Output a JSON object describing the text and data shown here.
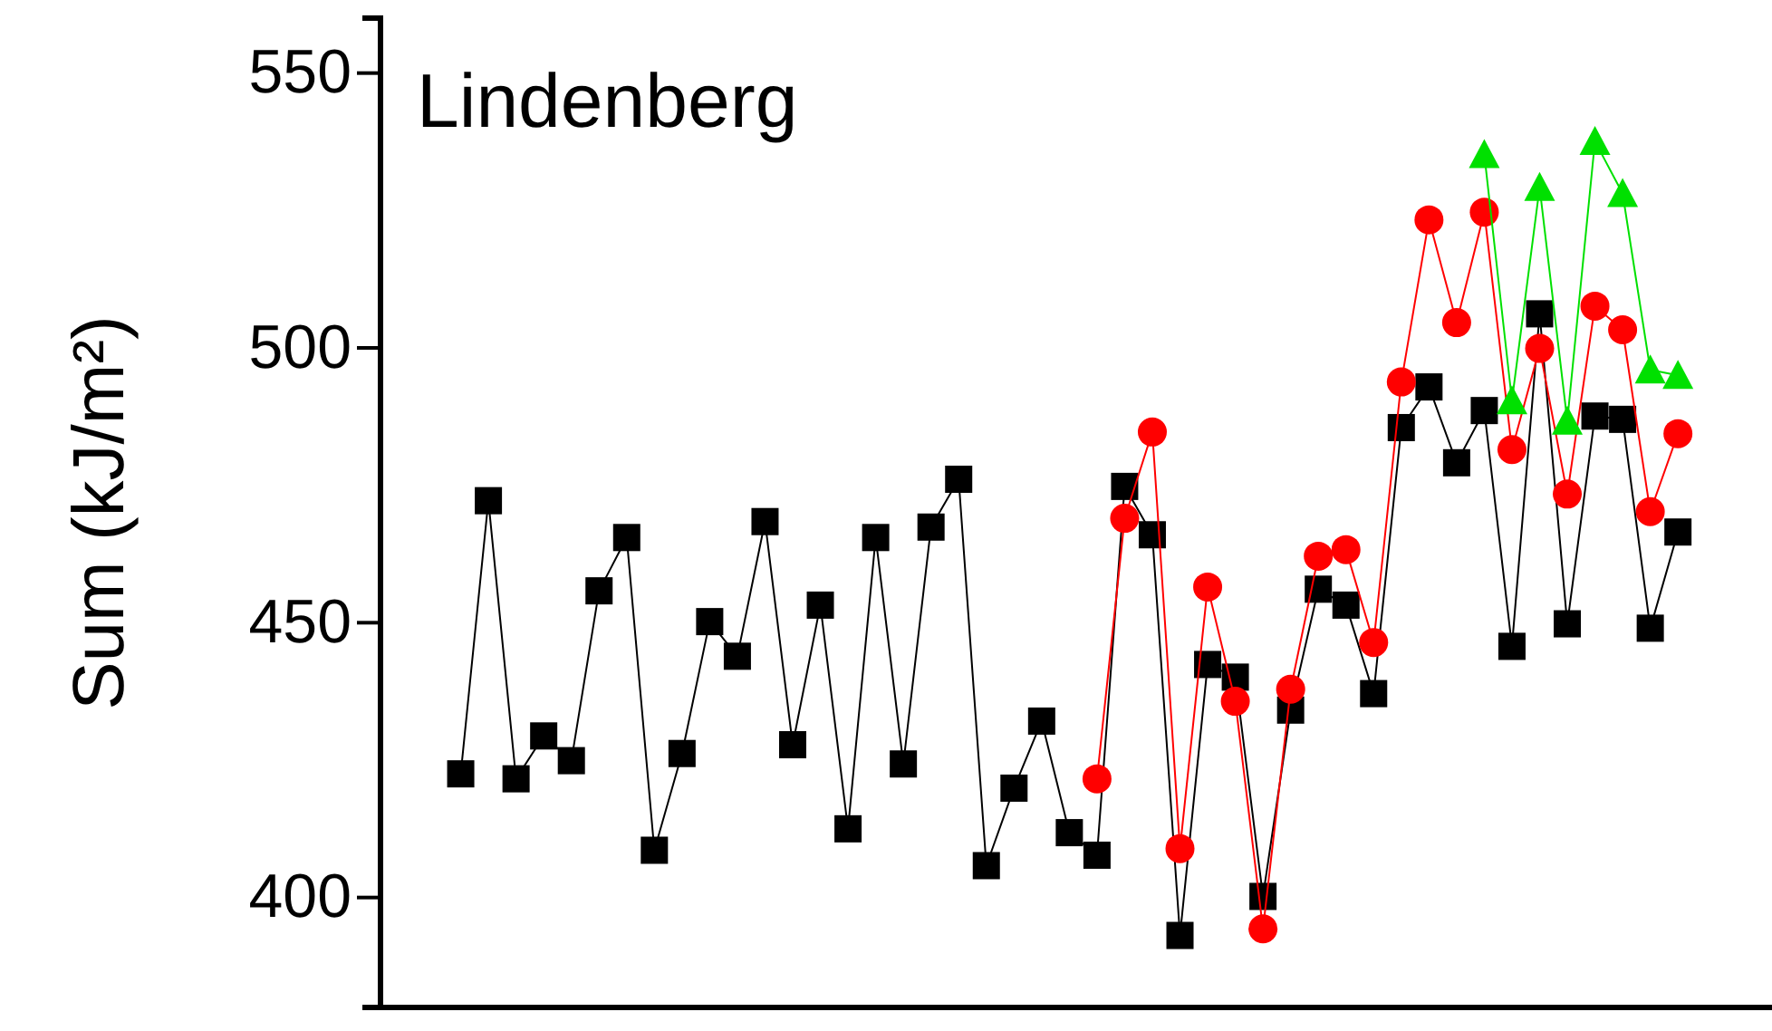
{
  "chart_data": {
    "type": "line",
    "title": "Lindenberg",
    "ylabel": "Sum (kJ/m²)",
    "categories": [
      null,
      null,
      null,
      null,
      null,
      null,
      null,
      null,
      null,
      null,
      null,
      null,
      null,
      null,
      null,
      null,
      null,
      null,
      null,
      null,
      null,
      null,
      null,
      null,
      null,
      null,
      null,
      null,
      null,
      null,
      null,
      null,
      null,
      null,
      null,
      null,
      null,
      null,
      null,
      null,
      null,
      null,
      null,
      null,
      null
    ],
    "series": [
      {
        "color": "#000000",
        "marker": "square",
        "values": [
          422.5,
          472.2,
          421.6,
          429.4,
          424.9,
          455.8,
          465.5,
          408.6,
          426.2,
          450.2,
          443.9,
          468.4,
          427.8,
          453.2,
          412.5,
          465.5,
          424.3,
          467.4,
          476.1,
          405.8,
          419.9,
          432.1,
          411.8,
          407.7,
          474.8,
          466.0,
          393.1,
          442.4,
          440.1,
          400.2,
          434.1,
          456.1,
          453.2,
          437.1,
          485.5,
          492.9,
          479.1,
          488.6,
          445.7,
          506.2,
          449.8,
          487.6,
          487.0,
          449.0,
          466.5
        ]
      },
      {
        "color": "#ff0000",
        "marker": "circle",
        "values": [
          null,
          null,
          null,
          null,
          null,
          null,
          null,
          null,
          null,
          null,
          null,
          null,
          null,
          null,
          null,
          null,
          null,
          null,
          null,
          null,
          null,
          null,
          null,
          421.6,
          469.0,
          484.7,
          408.9,
          456.5,
          435.7,
          394.3,
          437.9,
          462.1,
          463.3,
          446.4,
          493.8,
          523.3,
          504.6,
          524.7,
          481.5,
          499.9,
          473.4,
          507.6,
          503.3,
          470.2,
          484.4
        ]
      },
      {
        "color": "#00e000",
        "marker": "triangle",
        "values": [
          null,
          null,
          null,
          null,
          null,
          null,
          null,
          null,
          null,
          null,
          null,
          null,
          null,
          null,
          null,
          null,
          null,
          null,
          null,
          null,
          null,
          null,
          null,
          null,
          null,
          null,
          null,
          null,
          null,
          null,
          null,
          null,
          null,
          null,
          null,
          null,
          null,
          535.2,
          490.4,
          529.2,
          486.7,
          537.6,
          528.1,
          496.0,
          495.0
        ]
      }
    ],
    "ylim": [
      380,
      560
    ],
    "yticks": [
      400,
      450,
      500,
      550
    ],
    "line_style": "solid",
    "grid": false
  }
}
